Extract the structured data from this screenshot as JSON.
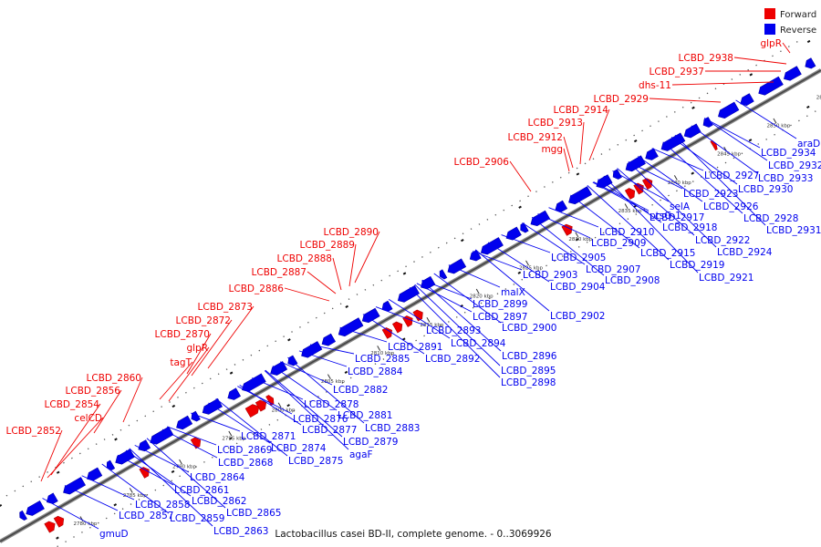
{
  "legend": {
    "forward_label": "Forward",
    "reverse_label": "Reverse",
    "forward_color": "#ee0000",
    "reverse_color": "#0000ee"
  },
  "caption": "Lactobacillus casei BD-II, complete genome. - 0..3069926",
  "ticks": [
    "2780 kbp",
    "2785 kbp",
    "2790 kbp",
    "2795 kbp",
    "2800 kbp",
    "2805 kbp",
    "2810 kbp",
    "2815 kbp",
    "2820 kbp",
    "2825 kbp",
    "2830 kbp",
    "2835 kbp",
    "2840 kbp",
    "2845 kbp",
    "2850 kbp",
    "2855 kbp",
    "2860 kbp"
  ],
  "forward_labels": [
    "LCBD_2852",
    "celCD",
    "LCBD_2854",
    "LCBD_2856",
    "LCBD_2860",
    "tagT",
    "glpR",
    "LCBD_2870",
    "LCBD_2872",
    "LCBD_2873",
    "LCBD_2886",
    "LCBD_2887",
    "LCBD_2888",
    "LCBD_2889",
    "LCBD_2890",
    "LCBD_2906",
    "mgg",
    "LCBD_2912",
    "LCBD_2913",
    "LCBD_2914",
    "LCBD_2929",
    "dhs-11",
    "LCBD_2937",
    "LCBD_2938",
    "glpR"
  ],
  "reverse_labels": [
    "gmuD",
    "LCBD_2857",
    "LCBD_2858",
    "LCBD_2859",
    "LCBD_2861",
    "LCBD_2862",
    "LCBD_2863",
    "LCBD_2864",
    "LCBD_2865",
    "LCBD_2868",
    "LCBD_2869",
    "LCBD_2871",
    "LCBD_2874",
    "LCBD_2875",
    "LCBD_2876",
    "LCBD_2877",
    "LCBD_2878",
    "agaF",
    "LCBD_2879",
    "LCBD_2881",
    "LCBD_2882",
    "LCBD_2883",
    "LCBD_2884",
    "LCBD_2885",
    "LCBD_2891",
    "LCBD_2892",
    "LCBD_2893",
    "LCBD_2894",
    "LCBD_2895",
    "LCBD_2896",
    "LCBD_2897",
    "LCBD_2898",
    "LCBD_2899",
    "malX",
    "LCBD_2900",
    "LCBD_2902",
    "LCBD_2903",
    "LCBD_2904",
    "LCBD_2905",
    "LCBD_2907",
    "LCBD_2908",
    "LCBD_2909",
    "LCBD_2910",
    "ptsG-1",
    "selA",
    "LCBD_2915",
    "LCBD_2917",
    "LCBD_2918",
    "LCBD_2919",
    "LCBD_2921",
    "LCBD_2922",
    "LCBD_2923",
    "LCBD_2924",
    "LCBD_2926",
    "LCBD_2927",
    "LCBD_2928",
    "LCBD_2930",
    "LCBD_2931",
    "LCBD_2932",
    "LCBD_2933",
    "LCBD_2934",
    "araD"
  ]
}
